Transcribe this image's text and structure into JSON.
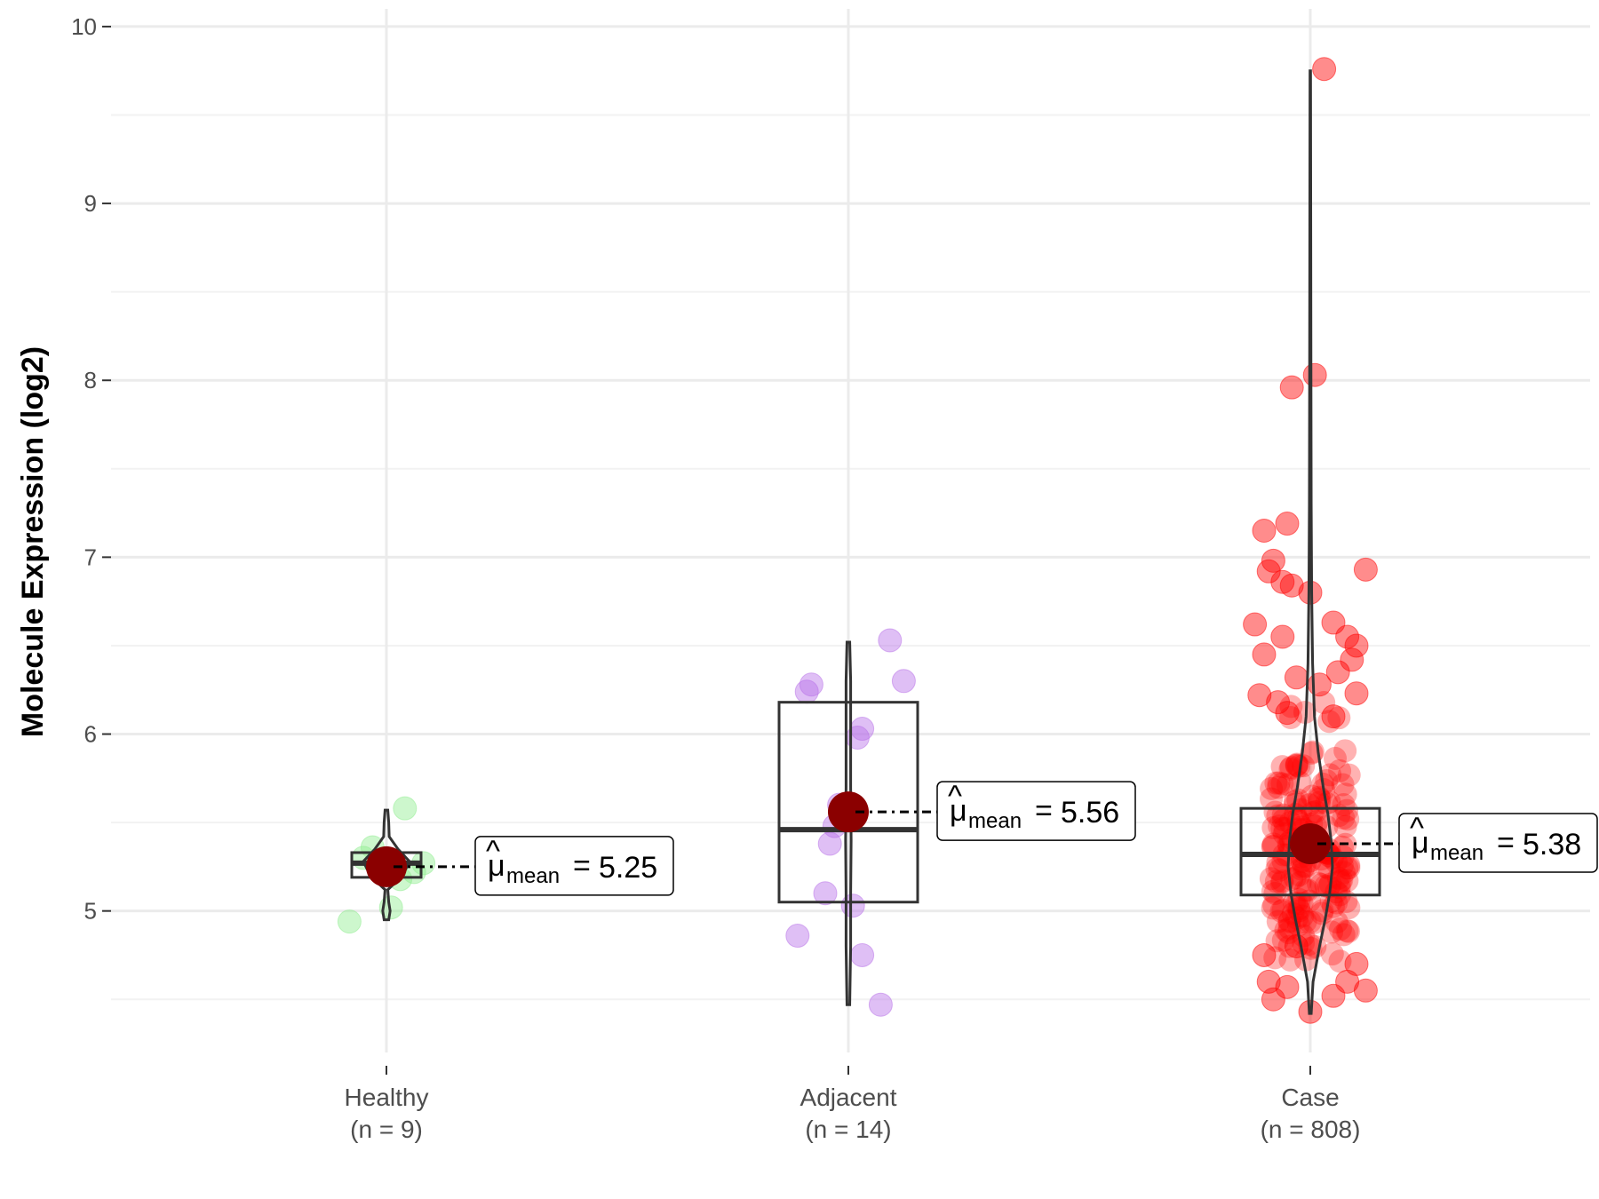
{
  "chart_data": {
    "type": "violin-box-jitter",
    "title": "",
    "xlabel": "",
    "ylabel": "Molecule Expression (log2)",
    "ylim": [
      4.2,
      10.1
    ],
    "yticks": [
      5,
      6,
      7,
      8,
      9,
      10
    ],
    "grid": true,
    "groups": [
      {
        "name": "Healthy",
        "n_label": "(n = 9)",
        "color": "#90ee90",
        "mean": 5.25,
        "mean_label": "5.25",
        "box": {
          "q1": 5.19,
          "median": 5.27,
          "q3": 5.33
        },
        "violin": [
          [
            4.95,
            0.05
          ],
          [
            5.0,
            0.08
          ],
          [
            5.05,
            0.05
          ],
          [
            5.12,
            0.03
          ],
          [
            5.2,
            0.35
          ],
          [
            5.28,
            0.5
          ],
          [
            5.35,
            0.25
          ],
          [
            5.42,
            0.06
          ],
          [
            5.5,
            0.05
          ],
          [
            5.57,
            0.03
          ]
        ],
        "points": [
          [
            -0.08,
            4.94
          ],
          [
            -0.03,
            5.36
          ],
          [
            0.01,
            5.02
          ],
          [
            0.03,
            5.18
          ],
          [
            0.04,
            5.58
          ],
          [
            0.08,
            5.27
          ],
          [
            -0.05,
            5.3
          ],
          [
            0.06,
            5.22
          ],
          [
            0.0,
            5.25
          ]
        ]
      },
      {
        "name": "Adjacent",
        "n_label": "(n = 14)",
        "color": "#b770e8",
        "mean": 5.56,
        "mean_label": "5.56",
        "box": {
          "q1": 5.05,
          "median": 5.46,
          "q3": 6.18
        },
        "violin": [
          [
            4.47,
            0.03
          ],
          [
            4.8,
            0.05
          ],
          [
            5.1,
            0.05
          ],
          [
            5.4,
            0.06
          ],
          [
            5.7,
            0.05
          ],
          [
            6.0,
            0.05
          ],
          [
            6.3,
            0.05
          ],
          [
            6.52,
            0.03
          ]
        ],
        "points": [
          [
            -0.11,
            4.86
          ],
          [
            0.07,
            4.47
          ],
          [
            0.03,
            4.75
          ],
          [
            -0.05,
            5.1
          ],
          [
            0.01,
            5.03
          ],
          [
            -0.04,
            5.38
          ],
          [
            -0.03,
            5.48
          ],
          [
            0.02,
            5.98
          ],
          [
            0.03,
            6.03
          ],
          [
            -0.09,
            6.24
          ],
          [
            -0.08,
            6.28
          ],
          [
            0.12,
            6.3
          ],
          [
            0.09,
            6.53
          ],
          [
            -0.02,
            5.6
          ]
        ]
      },
      {
        "name": "Case",
        "n_label": "(n = 808)",
        "color": "#ff0000",
        "mean": 5.38,
        "mean_label": "5.38",
        "box": {
          "q1": 5.09,
          "median": 5.32,
          "q3": 5.58
        },
        "violin": [
          [
            4.42,
            0.02
          ],
          [
            4.6,
            0.06
          ],
          [
            4.8,
            0.2
          ],
          [
            4.95,
            0.32
          ],
          [
            5.1,
            0.42
          ],
          [
            5.25,
            0.48
          ],
          [
            5.4,
            0.45
          ],
          [
            5.55,
            0.38
          ],
          [
            5.7,
            0.28
          ],
          [
            5.9,
            0.17
          ],
          [
            6.1,
            0.09
          ],
          [
            6.4,
            0.05
          ],
          [
            6.8,
            0.03
          ],
          [
            7.3,
            0.02
          ],
          [
            8.0,
            0.015
          ],
          [
            9.0,
            0.01
          ],
          [
            9.75,
            0.006
          ]
        ],
        "points": [
          [
            0.03,
            9.76
          ],
          [
            -0.04,
            7.96
          ],
          [
            0.01,
            8.03
          ],
          [
            -0.1,
            7.15
          ],
          [
            -0.05,
            7.19
          ],
          [
            -0.08,
            6.98
          ],
          [
            -0.09,
            6.92
          ],
          [
            -0.06,
            6.86
          ],
          [
            -0.04,
            6.84
          ],
          [
            0.0,
            6.8
          ],
          [
            0.12,
            6.93
          ],
          [
            -0.12,
            6.62
          ],
          [
            -0.1,
            6.45
          ],
          [
            -0.06,
            6.55
          ],
          [
            0.05,
            6.63
          ],
          [
            0.08,
            6.55
          ],
          [
            0.1,
            6.5
          ],
          [
            0.09,
            6.42
          ],
          [
            -0.03,
            6.32
          ],
          [
            0.06,
            6.35
          ],
          [
            -0.11,
            6.22
          ],
          [
            0.02,
            6.28
          ],
          [
            -0.07,
            6.18
          ],
          [
            0.1,
            6.23
          ],
          [
            -0.05,
            6.12
          ],
          [
            0.05,
            6.1
          ],
          [
            -0.09,
            4.6
          ],
          [
            -0.08,
            4.5
          ],
          [
            0.0,
            4.43
          ],
          [
            0.05,
            4.52
          ],
          [
            0.12,
            4.55
          ],
          [
            -0.05,
            4.57
          ],
          [
            0.08,
            4.6
          ],
          [
            0.1,
            4.7
          ],
          [
            -0.1,
            4.75
          ],
          [
            -0.03,
            4.8
          ]
        ]
      }
    ]
  }
}
